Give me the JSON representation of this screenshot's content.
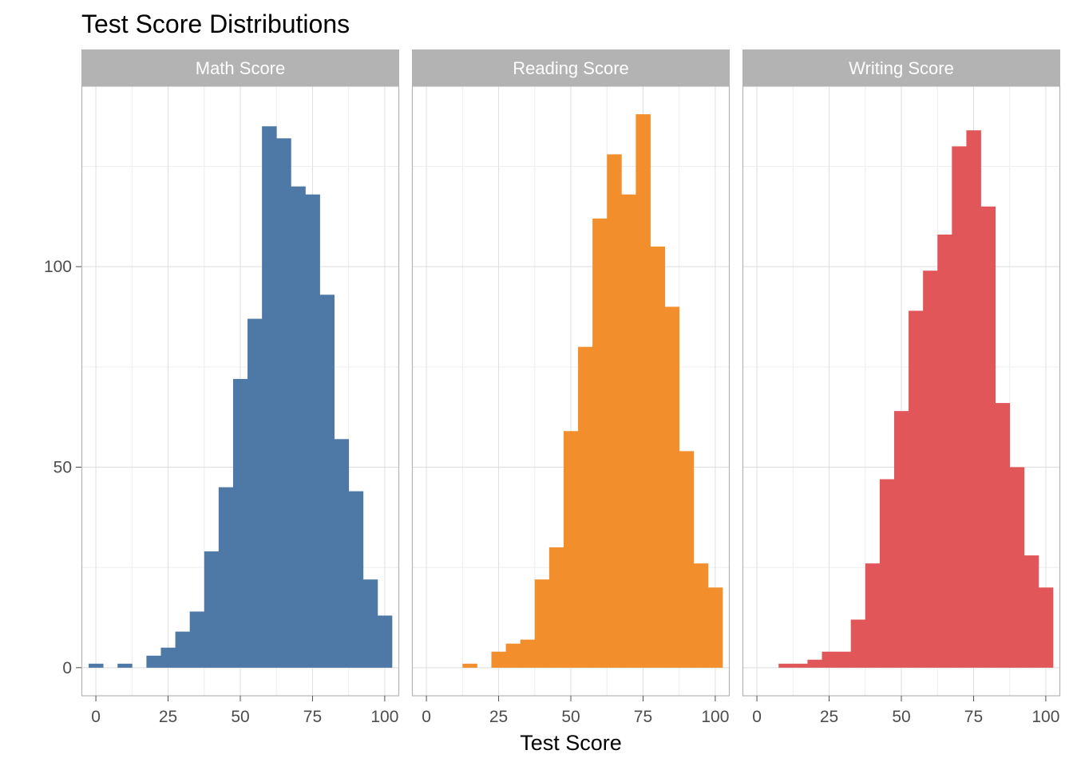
{
  "chart_data": {
    "type": "bar",
    "title": "Test Score Distributions",
    "xlabel": "Test Score",
    "ylabel": "",
    "xlim": [
      -5,
      105
    ],
    "ylim": [
      -7,
      145
    ],
    "x_ticks": [
      0,
      25,
      50,
      75,
      100
    ],
    "y_ticks": [
      0,
      50,
      100
    ],
    "grid": true,
    "bin_width": 5,
    "panels": [
      {
        "name": "Math Score",
        "color": "#4e79a7",
        "bins": [
          {
            "x": 0,
            "count": 1
          },
          {
            "x": 5,
            "count": 0
          },
          {
            "x": 10,
            "count": 1
          },
          {
            "x": 15,
            "count": 0
          },
          {
            "x": 20,
            "count": 3
          },
          {
            "x": 25,
            "count": 5
          },
          {
            "x": 30,
            "count": 9
          },
          {
            "x": 35,
            "count": 14
          },
          {
            "x": 40,
            "count": 29
          },
          {
            "x": 45,
            "count": 45
          },
          {
            "x": 50,
            "count": 72
          },
          {
            "x": 55,
            "count": 87
          },
          {
            "x": 60,
            "count": 135
          },
          {
            "x": 65,
            "count": 132
          },
          {
            "x": 70,
            "count": 120
          },
          {
            "x": 75,
            "count": 118
          },
          {
            "x": 80,
            "count": 93
          },
          {
            "x": 85,
            "count": 57
          },
          {
            "x": 90,
            "count": 44
          },
          {
            "x": 95,
            "count": 22
          },
          {
            "x": 100,
            "count": 13
          }
        ]
      },
      {
        "name": "Reading Score",
        "color": "#f28e2b",
        "bins": [
          {
            "x": 15,
            "count": 1
          },
          {
            "x": 20,
            "count": 0
          },
          {
            "x": 25,
            "count": 4
          },
          {
            "x": 30,
            "count": 6
          },
          {
            "x": 35,
            "count": 7
          },
          {
            "x": 40,
            "count": 22
          },
          {
            "x": 45,
            "count": 30
          },
          {
            "x": 50,
            "count": 59
          },
          {
            "x": 55,
            "count": 80
          },
          {
            "x": 60,
            "count": 112
          },
          {
            "x": 65,
            "count": 128
          },
          {
            "x": 70,
            "count": 118
          },
          {
            "x": 75,
            "count": 138
          },
          {
            "x": 80,
            "count": 105
          },
          {
            "x": 85,
            "count": 90
          },
          {
            "x": 90,
            "count": 54
          },
          {
            "x": 95,
            "count": 26
          },
          {
            "x": 100,
            "count": 20
          }
        ]
      },
      {
        "name": "Writing Score",
        "color": "#e15759",
        "bins": [
          {
            "x": 10,
            "count": 1
          },
          {
            "x": 15,
            "count": 1
          },
          {
            "x": 20,
            "count": 2
          },
          {
            "x": 25,
            "count": 4
          },
          {
            "x": 30,
            "count": 4
          },
          {
            "x": 35,
            "count": 12
          },
          {
            "x": 40,
            "count": 26
          },
          {
            "x": 45,
            "count": 47
          },
          {
            "x": 50,
            "count": 64
          },
          {
            "x": 55,
            "count": 89
          },
          {
            "x": 60,
            "count": 99
          },
          {
            "x": 65,
            "count": 108
          },
          {
            "x": 70,
            "count": 130
          },
          {
            "x": 75,
            "count": 134
          },
          {
            "x": 80,
            "count": 115
          },
          {
            "x": 85,
            "count": 66
          },
          {
            "x": 90,
            "count": 50
          },
          {
            "x": 95,
            "count": 28
          },
          {
            "x": 100,
            "count": 20
          }
        ]
      }
    ]
  }
}
